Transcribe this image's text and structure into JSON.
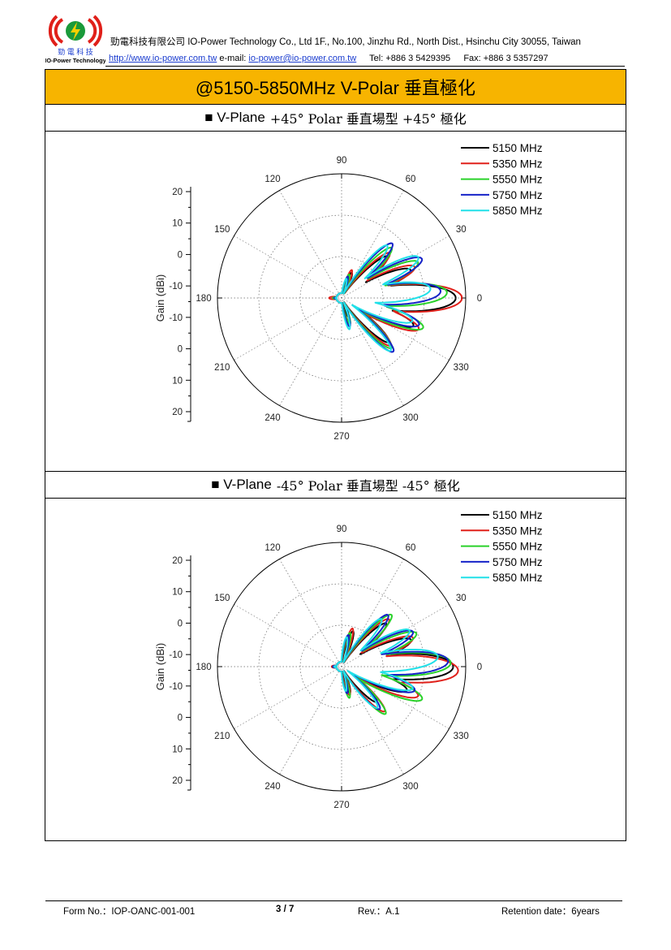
{
  "header": {
    "logo_text_cn": "勁 電 科 技",
    "logo_text_en": "IO-Power Technology",
    "company_line": "勁電科技有限公司 IO-Power Technology Co., Ltd 1F., No.100, Jinzhu Rd., North Dist., Hsinchu City 30055, Taiwan",
    "website": "http://www.io-power.com.tw",
    "email_label": "e-mail:",
    "email": "io-power@io-power.com.tw",
    "tel": "Tel: +886 3 5429395",
    "fax": "Fax: +886 3 5357297"
  },
  "title": "@5150-5850MHz   V-Polar 垂直極化",
  "colors": {
    "title_bg": "#f7b400",
    "link": "#1a3ccf"
  },
  "sections": [
    {
      "marker": "■",
      "plane": "V-Plane",
      "polar": "+45° Polar  垂直場型 +45° 極化"
    },
    {
      "marker": "■",
      "plane": "V-Plane",
      "polar": "-45° Polar  垂直場型 -45° 極化"
    }
  ],
  "chart_data": [
    {
      "type": "polar",
      "ylabel": "Gain (dBi)",
      "radial_ticks": [
        "20",
        "10",
        "0",
        "-10",
        "-10",
        "0",
        "10",
        "20"
      ],
      "angle_labels": [
        "0",
        "30",
        "60",
        "90",
        "120",
        "150",
        "180",
        "210",
        "240",
        "270",
        "300",
        "330"
      ],
      "legend_position": "top-right",
      "grid": true,
      "series": [
        {
          "name": "5150 MHz",
          "color": "#000000",
          "lobes": [
            [
              0,
              0.92,
              11
            ],
            [
              -21,
              0.62,
              8
            ],
            [
              22,
              0.6,
              8
            ],
            [
              -43,
              0.52,
              7
            ],
            [
              42,
              0.5,
              7
            ],
            [
              68,
              0.22,
              6
            ],
            [
              -70,
              0.16,
              6
            ],
            [
              180,
              0.06,
              12
            ]
          ]
        },
        {
          "name": "5350 MHz",
          "color": "#e0201a",
          "lobes": [
            [
              0,
              0.97,
              11
            ],
            [
              -22,
              0.67,
              8
            ],
            [
              23,
              0.64,
              8
            ],
            [
              -44,
              0.55,
              7
            ],
            [
              43,
              0.53,
              7
            ],
            [
              70,
              0.24,
              6
            ],
            [
              -72,
              0.2,
              6
            ],
            [
              180,
              0.1,
              10
            ]
          ]
        },
        {
          "name": "5550 MHz",
          "color": "#2ad22a",
          "lobes": [
            [
              3,
              0.85,
              10
            ],
            [
              -20,
              0.7,
              8
            ],
            [
              25,
              0.68,
              8
            ],
            [
              -45,
              0.57,
              7
            ],
            [
              45,
              0.57,
              7
            ],
            [
              72,
              0.2,
              6
            ],
            [
              -72,
              0.22,
              6
            ],
            [
              180,
              0.07,
              12
            ]
          ]
        },
        {
          "name": "5750 MHz",
          "color": "#1522c8",
          "lobes": [
            [
              4,
              0.8,
              10
            ],
            [
              -19,
              0.66,
              8
            ],
            [
              26,
              0.72,
              8
            ],
            [
              -46,
              0.6,
              7
            ],
            [
              47,
              0.6,
              7
            ],
            [
              74,
              0.18,
              6
            ],
            [
              -74,
              0.24,
              6
            ],
            [
              180,
              0.06,
              12
            ]
          ]
        },
        {
          "name": "5850 MHz",
          "color": "#20e0e8",
          "lobes": [
            [
              6,
              0.72,
              10
            ],
            [
              -18,
              0.6,
              8
            ],
            [
              28,
              0.7,
              8
            ],
            [
              -47,
              0.58,
              7
            ],
            [
              49,
              0.56,
              7
            ],
            [
              76,
              0.16,
              6
            ],
            [
              -76,
              0.26,
              6
            ],
            [
              180,
              0.05,
              12
            ]
          ]
        }
      ]
    },
    {
      "type": "polar",
      "ylabel": "Gain (dBi)",
      "radial_ticks": [
        "20",
        "10",
        "0",
        "-10",
        "-10",
        "0",
        "10",
        "20"
      ],
      "angle_labels": [
        "0",
        "30",
        "60",
        "90",
        "120",
        "150",
        "180",
        "210",
        "240",
        "270",
        "300",
        "330"
      ],
      "legend_position": "top-right",
      "grid": true,
      "series": [
        {
          "name": "5150 MHz",
          "color": "#000000",
          "lobes": [
            [
              0,
              0.9,
              11
            ],
            [
              -20,
              0.56,
              8
            ],
            [
              21,
              0.6,
              8
            ],
            [
              -45,
              0.4,
              7
            ],
            [
              44,
              0.5,
              7
            ],
            [
              72,
              0.3,
              6
            ],
            [
              -72,
              0.22,
              6
            ],
            [
              180,
              0.06,
              12
            ]
          ]
        },
        {
          "name": "5350 MHz",
          "color": "#e0201a",
          "lobes": [
            [
              -2,
              0.94,
              11
            ],
            [
              -21,
              0.66,
              8
            ],
            [
              22,
              0.62,
              8
            ],
            [
              -46,
              0.5,
              7
            ],
            [
              45,
              0.54,
              7
            ],
            [
              74,
              0.32,
              6
            ],
            [
              -74,
              0.24,
              6
            ],
            [
              180,
              0.08,
              12
            ]
          ]
        },
        {
          "name": "5550 MHz",
          "color": "#2ad22a",
          "lobes": [
            [
              2,
              0.88,
              10
            ],
            [
              -22,
              0.7,
              8
            ],
            [
              24,
              0.66,
              8
            ],
            [
              -47,
              0.52,
              7
            ],
            [
              46,
              0.58,
              7
            ],
            [
              76,
              0.28,
              6
            ],
            [
              -76,
              0.26,
              6
            ],
            [
              180,
              0.07,
              12
            ]
          ]
        },
        {
          "name": "5750 MHz",
          "color": "#1522c8",
          "lobes": [
            [
              3,
              0.86,
              10
            ],
            [
              -18,
              0.62,
              8
            ],
            [
              26,
              0.64,
              8
            ],
            [
              -48,
              0.46,
              7
            ],
            [
              48,
              0.56,
              7
            ],
            [
              78,
              0.26,
              6
            ],
            [
              -78,
              0.22,
              6
            ],
            [
              180,
              0.07,
              12
            ]
          ]
        },
        {
          "name": "5850 MHz",
          "color": "#20e0e8",
          "lobes": [
            [
              6,
              0.78,
              10
            ],
            [
              -17,
              0.6,
              8
            ],
            [
              28,
              0.62,
              8
            ],
            [
              -49,
              0.44,
              7
            ],
            [
              50,
              0.5,
              7
            ],
            [
              80,
              0.24,
              6
            ],
            [
              -80,
              0.2,
              6
            ],
            [
              180,
              0.06,
              12
            ]
          ]
        }
      ]
    }
  ],
  "footer": {
    "form_no": "Form No.：IOP-OANC-001-001",
    "page": "3 / 7",
    "rev": "Rev.：A.1",
    "retention": "Retention date：6years"
  }
}
